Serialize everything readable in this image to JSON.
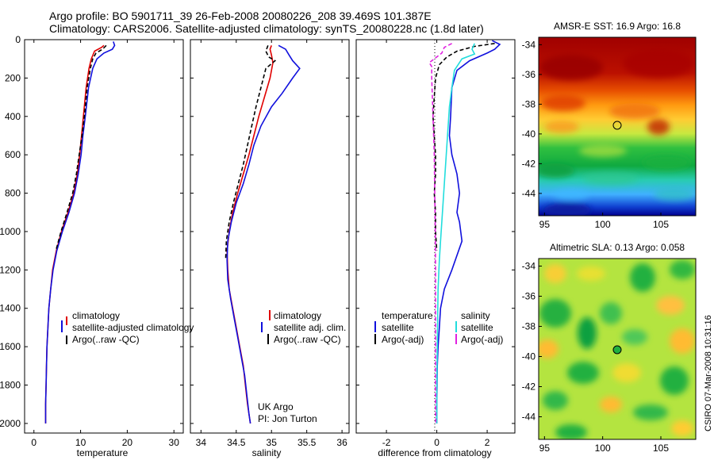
{
  "header": {
    "line1": "Argo profile: BO 5901711_39 26-Feb-2008 20080226_208 39.469S 101.387E",
    "line2": "Climatology: CARS2006. Satellite-adjusted climatology: synTS_20080228.nc (1.8d later)"
  },
  "footer_vertical": "CSIRO 07-Mar-2008 10:31:16",
  "colors": {
    "climatology": "#e00000",
    "satellite": "#1010dd",
    "argo": "#000000",
    "sal_satellite": "#22dddd",
    "sal_argo": "#e020e0"
  },
  "chart_data": [
    {
      "type": "line",
      "xlabel": "temperature",
      "xlim": [
        -2,
        32
      ],
      "ylim": [
        2050,
        0
      ],
      "xticks": [
        0,
        10,
        20,
        30
      ],
      "yticks": [
        0,
        200,
        400,
        600,
        800,
        1000,
        1200,
        1400,
        1600,
        1800,
        2000
      ],
      "legend": [
        "climatology",
        "satellite-adjusted climatology",
        "Argo(..raw -QC)"
      ],
      "series": [
        {
          "name": "climatology",
          "color": "#e00000",
          "dash": "",
          "points": [
            [
              15,
              30
            ],
            [
              14.5,
              40
            ],
            [
              13,
              60
            ],
            [
              12.3,
              100
            ],
            [
              11.8,
              150
            ],
            [
              11.2,
              250
            ],
            [
              10.6,
              400
            ],
            [
              10.2,
              500
            ],
            [
              9.8,
              600
            ],
            [
              9.3,
              700
            ],
            [
              8.5,
              800
            ],
            [
              7.3,
              900
            ],
            [
              5.9,
              1000
            ],
            [
              4.8,
              1100
            ],
            [
              4.0,
              1200
            ],
            [
              3.6,
              1300
            ],
            [
              3.2,
              1400
            ],
            [
              3.0,
              1500
            ],
            [
              2.8,
              1600
            ],
            [
              2.7,
              1700
            ],
            [
              2.6,
              1800
            ],
            [
              2.5,
              1900
            ],
            [
              2.5,
              2000
            ]
          ]
        },
        {
          "name": "satellite-adjusted climatology",
          "color": "#1010dd",
          "dash": "",
          "points": [
            [
              17,
              10
            ],
            [
              17.3,
              30
            ],
            [
              16.8,
              50
            ],
            [
              15,
              70
            ],
            [
              13.5,
              100
            ],
            [
              12.6,
              150
            ],
            [
              11.7,
              250
            ],
            [
              11.0,
              400
            ],
            [
              10.5,
              500
            ],
            [
              10.1,
              600
            ],
            [
              9.5,
              700
            ],
            [
              8.7,
              800
            ],
            [
              7.5,
              900
            ],
            [
              6.1,
              1000
            ],
            [
              4.9,
              1100
            ],
            [
              4.1,
              1200
            ],
            [
              3.6,
              1300
            ],
            [
              3.2,
              1400
            ],
            [
              3.0,
              1500
            ],
            [
              2.8,
              1600
            ],
            [
              2.7,
              1700
            ],
            [
              2.6,
              1800
            ],
            [
              2.5,
              1900
            ],
            [
              2.5,
              2000
            ]
          ]
        },
        {
          "name": "Argo(..raw -QC)",
          "color": "#000000",
          "dash": "5,3",
          "points": [
            [
              15.5,
              30
            ],
            [
              14.7,
              50
            ],
            [
              13.3,
              70
            ],
            [
              12.6,
              100
            ],
            [
              12.1,
              150
            ],
            [
              11.4,
              250
            ],
            [
              10.8,
              400
            ],
            [
              10.3,
              500
            ],
            [
              9.7,
              600
            ],
            [
              9.1,
              700
            ],
            [
              8.3,
              800
            ],
            [
              7.1,
              900
            ],
            [
              5.8,
              1000
            ],
            [
              4.7,
              1100
            ]
          ]
        }
      ]
    },
    {
      "type": "line",
      "xlabel": "salinity",
      "xlim": [
        33.85,
        36.1
      ],
      "ylim": [
        2050,
        0
      ],
      "xticks": [
        34,
        34.5,
        35,
        35.5,
        36
      ],
      "legend": [
        "climatology",
        "satellite adj. clim.",
        "Argo(..raw -QC)"
      ],
      "annotations": [
        "UK Argo",
        "PI: Jon Turton"
      ],
      "series": [
        {
          "name": "climatology",
          "color": "#e00000",
          "dash": "",
          "points": [
            [
              35.0,
              30
            ],
            [
              34.98,
              50
            ],
            [
              35.0,
              80
            ],
            [
              35.02,
              120
            ],
            [
              34.98,
              200
            ],
            [
              34.9,
              300
            ],
            [
              34.82,
              400
            ],
            [
              34.75,
              500
            ],
            [
              34.68,
              600
            ],
            [
              34.6,
              700
            ],
            [
              34.52,
              800
            ],
            [
              34.45,
              900
            ],
            [
              34.4,
              1000
            ],
            [
              34.37,
              1100
            ],
            [
              34.38,
              1200
            ],
            [
              34.4,
              1300
            ],
            [
              34.45,
              1400
            ],
            [
              34.5,
              1500
            ],
            [
              34.55,
              1600
            ],
            [
              34.6,
              1700
            ],
            [
              34.63,
              1800
            ],
            [
              34.66,
              1900
            ],
            [
              34.7,
              2000
            ]
          ]
        },
        {
          "name": "satellite adj. clim.",
          "color": "#1010dd",
          "dash": "",
          "points": [
            [
              35.1,
              30
            ],
            [
              35.2,
              50
            ],
            [
              35.25,
              80
            ],
            [
              35.3,
              110
            ],
            [
              35.4,
              150
            ],
            [
              35.3,
              200
            ],
            [
              35.15,
              280
            ],
            [
              35.0,
              350
            ],
            [
              34.85,
              450
            ],
            [
              34.75,
              550
            ],
            [
              34.68,
              650
            ],
            [
              34.6,
              750
            ],
            [
              34.5,
              850
            ],
            [
              34.43,
              950
            ],
            [
              34.38,
              1050
            ],
            [
              34.37,
              1150
            ],
            [
              34.38,
              1250
            ],
            [
              34.42,
              1350
            ],
            [
              34.47,
              1450
            ],
            [
              34.52,
              1550
            ],
            [
              34.57,
              1650
            ],
            [
              34.62,
              1750
            ],
            [
              34.65,
              1850
            ],
            [
              34.68,
              1950
            ],
            [
              34.7,
              2000
            ]
          ]
        },
        {
          "name": "Argo(..raw -QC)",
          "color": "#000000",
          "dash": "5,3",
          "points": [
            [
              34.95,
              30
            ],
            [
              34.92,
              60
            ],
            [
              34.96,
              90
            ],
            [
              35.05,
              110
            ],
            [
              34.92,
              150
            ],
            [
              34.85,
              250
            ],
            [
              34.78,
              350
            ],
            [
              34.72,
              450
            ],
            [
              34.66,
              550
            ],
            [
              34.6,
              650
            ],
            [
              34.53,
              750
            ],
            [
              34.46,
              850
            ],
            [
              34.4,
              950
            ],
            [
              34.36,
              1050
            ],
            [
              34.35,
              1150
            ]
          ]
        }
      ]
    },
    {
      "type": "line",
      "xlabel": "difference from climatology",
      "xlim": [
        -3.2,
        3.1
      ],
      "ylim": [
        2050,
        0
      ],
      "xticks": [
        -2,
        0,
        2
      ],
      "legend": [
        "temperature",
        "satellite",
        "Argo(-adj)",
        "salinity",
        "satellite",
        "Argo(-adj)"
      ],
      "series": [
        {
          "name": "temperature satellite",
          "color": "#1010dd",
          "dash": "",
          "points": [
            [
              2.2,
              5
            ],
            [
              2.5,
              25
            ],
            [
              2.3,
              50
            ],
            [
              2.0,
              70
            ],
            [
              1.3,
              110
            ],
            [
              0.8,
              160
            ],
            [
              0.6,
              250
            ],
            [
              0.55,
              400
            ],
            [
              0.5,
              500
            ],
            [
              0.6,
              600
            ],
            [
              0.8,
              700
            ],
            [
              0.9,
              800
            ],
            [
              0.8,
              900
            ],
            [
              0.9,
              950
            ],
            [
              1.0,
              1050
            ],
            [
              0.6,
              1200
            ],
            [
              0.3,
              1300
            ],
            [
              0.15,
              1400
            ],
            [
              0.1,
              1500
            ],
            [
              0.05,
              1600
            ],
            [
              0.02,
              1700
            ],
            [
              0.01,
              1800
            ],
            [
              0.0,
              1900
            ],
            [
              0.0,
              2000
            ]
          ]
        },
        {
          "name": "temperature Argo(-adj)",
          "color": "#000000",
          "dash": "5,3",
          "points": [
            [
              2.3,
              20
            ],
            [
              1.5,
              35
            ],
            [
              0.8,
              60
            ],
            [
              0.4,
              90
            ],
            [
              0.1,
              130
            ],
            [
              -0.05,
              200
            ],
            [
              -0.1,
              300
            ],
            [
              -0.15,
              400
            ],
            [
              -0.1,
              500
            ],
            [
              -0.05,
              600
            ],
            [
              -0.05,
              700
            ],
            [
              -0.1,
              800
            ],
            [
              -0.05,
              900
            ],
            [
              -0.05,
              1000
            ],
            [
              0.0,
              1100
            ]
          ]
        },
        {
          "name": "salinity satellite",
          "color": "#22dddd",
          "dash": "",
          "points": [
            [
              1.5,
              20
            ],
            [
              1.4,
              50
            ],
            [
              1.5,
              75
            ],
            [
              1.0,
              100
            ],
            [
              0.7,
              160
            ],
            [
              0.6,
              250
            ],
            [
              0.5,
              350
            ],
            [
              0.45,
              450
            ],
            [
              0.4,
              550
            ],
            [
              0.35,
              650
            ],
            [
              0.3,
              750
            ],
            [
              0.25,
              850
            ],
            [
              0.2,
              950
            ],
            [
              0.15,
              1050
            ],
            [
              0.1,
              1150
            ],
            [
              0.05,
              1300
            ],
            [
              0.03,
              1500
            ],
            [
              0.0,
              1800
            ],
            [
              0.0,
              2000
            ]
          ]
        },
        {
          "name": "salinity Argo(-adj)",
          "color": "#e020e0",
          "dash": "5,3",
          "points": [
            [
              0.6,
              20
            ],
            [
              0.3,
              40
            ],
            [
              0.2,
              70
            ],
            [
              -0.1,
              100
            ],
            [
              -0.3,
              120
            ],
            [
              -0.2,
              140
            ],
            [
              -0.2,
              200
            ],
            [
              -0.15,
              400
            ],
            [
              -0.1,
              600
            ],
            [
              -0.08,
              800
            ],
            [
              -0.06,
              1000
            ],
            [
              -0.05,
              1200
            ],
            [
              -0.05,
              1400
            ],
            [
              -0.05,
              1600
            ],
            [
              -0.05,
              1800
            ],
            [
              -0.04,
              2000
            ]
          ]
        }
      ]
    },
    {
      "type": "heatmap",
      "title": "AMSR-E SST: 16.9 Argo: 16.8",
      "xlim": [
        94.5,
        108
      ],
      "ylim": [
        -45.5,
        -33.5
      ],
      "xticks": [
        95,
        100,
        105
      ],
      "yticks": [
        -34,
        -36,
        -38,
        -40,
        -42,
        -44
      ],
      "marker": [
        101.387,
        -39.469
      ]
    },
    {
      "type": "heatmap",
      "title": "Altimetric SLA: 0.13 Argo: 0.058",
      "xlim": [
        94.5,
        108
      ],
      "ylim": [
        -45.5,
        -33.5
      ],
      "xticks": [
        95,
        100,
        105
      ],
      "yticks": [
        -34,
        -36,
        -38,
        -40,
        -42,
        -44
      ],
      "marker": [
        101.387,
        -39.469
      ]
    }
  ]
}
